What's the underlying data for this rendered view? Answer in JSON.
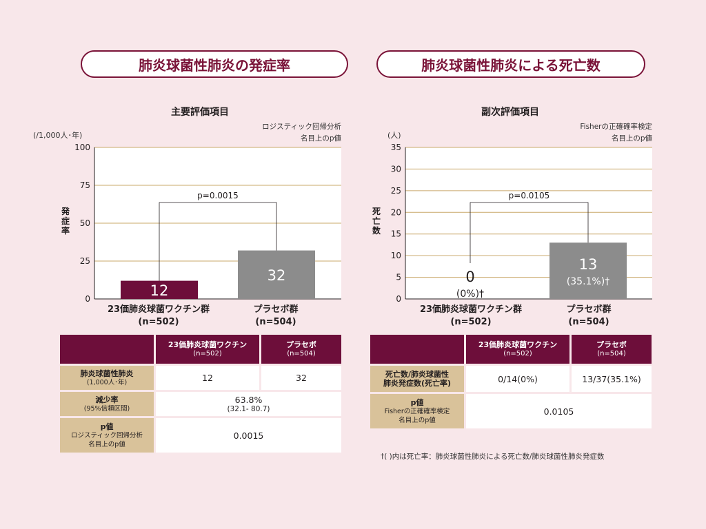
{
  "left": {
    "title": "肺炎球菌性肺炎の発症率",
    "subtitle": "主要評価項目",
    "unit": "(/1,000人･年)",
    "method_line1": "ロジスティック回帰分析",
    "method_line2": "名目上のp値",
    "ylabel": "発症率",
    "pvalue_label": "p=0.0015",
    "bar_labels": [
      "12",
      "32"
    ],
    "categories": [
      {
        "name": "23価肺炎球菌ワクチン群",
        "n": "(n=502)"
      },
      {
        "name": "プラセボ群",
        "n": "(n=504)"
      }
    ],
    "table": {
      "headers": [
        {
          "name": "23価肺炎球菌ワクチン",
          "n": "(n=502)"
        },
        {
          "name": "プラセボ",
          "n": "(n=504)"
        }
      ],
      "rows": [
        {
          "label": "肺炎球菌性肺炎",
          "label_sub": "(1,000人･年)",
          "v1": "12",
          "v2": "32"
        },
        {
          "label": "減少率",
          "label_sub": "(95%信頼区間)",
          "value": "63.8%",
          "value_sub": "(32.1- 80.7)"
        },
        {
          "label": "p値",
          "label_sub1": "ロジスティック回帰分析",
          "label_sub2": "名目上のp値",
          "value": "0.0015"
        }
      ]
    }
  },
  "right": {
    "title": "肺炎球菌性肺炎による死亡数",
    "subtitle": "副次評価項目",
    "unit": "(人)",
    "method_line1": "Fisherの正確確率検定",
    "method_line2": "名目上のp値",
    "ylabel": "死亡数",
    "pvalue_label": "p=0.0105",
    "bar_labels": [
      "0",
      "13"
    ],
    "bar_sublabels": [
      "(0%)†",
      "(35.1%)†"
    ],
    "categories": [
      {
        "name": "23価肺炎球菌ワクチン群",
        "n": "(n=502)"
      },
      {
        "name": "プラセボ群",
        "n": "(n=504)"
      }
    ],
    "table": {
      "headers": [
        {
          "name": "23価肺炎球菌ワクチン",
          "n": "(n=502)"
        },
        {
          "name": "プラセボ",
          "n": "(n=504)"
        }
      ],
      "rows": [
        {
          "label1": "死亡数/肺炎球菌性",
          "label2": "肺炎発症数(死亡率)",
          "v1": "0/14(0%)",
          "v2": "13/37(35.1%)"
        },
        {
          "label": "p値",
          "label_sub1": "Fisherの正確確率検定",
          "label_sub2": "名目上のp値",
          "value": "0.0105"
        }
      ]
    },
    "footnote": "†( )内は死亡率：肺炎球菌性肺炎による死亡数/肺炎球菌性肺炎発症数"
  },
  "colors": {
    "vaccine": "#6d0e3a",
    "placebo": "#8c8c8c",
    "grid": "#c9a86a",
    "accent": "#7a1338"
  },
  "chart_data": [
    {
      "type": "bar",
      "title": "肺炎球菌性肺炎の発症率",
      "subtitle": "主要評価項目",
      "ylabel": "発症率",
      "unit": "(/1,000人･年)",
      "categories": [
        "23価肺炎球菌ワクチン群 (n=502)",
        "プラセボ群 (n=504)"
      ],
      "values": [
        12,
        32
      ],
      "ylim": [
        0,
        100
      ],
      "yticks": [
        0,
        25,
        50,
        75,
        100
      ],
      "grid": true,
      "annotation": "p=0.0015"
    },
    {
      "type": "bar",
      "title": "肺炎球菌性肺炎による死亡数",
      "subtitle": "副次評価項目",
      "ylabel": "死亡数",
      "unit": "(人)",
      "categories": [
        "23価肺炎球菌ワクチン群 (n=502)",
        "プラセボ群 (n=504)"
      ],
      "values": [
        0,
        13
      ],
      "ylim": [
        0,
        35
      ],
      "yticks": [
        0,
        5,
        10,
        15,
        20,
        25,
        30,
        35
      ],
      "grid": true,
      "annotation": "p=0.0105"
    }
  ]
}
